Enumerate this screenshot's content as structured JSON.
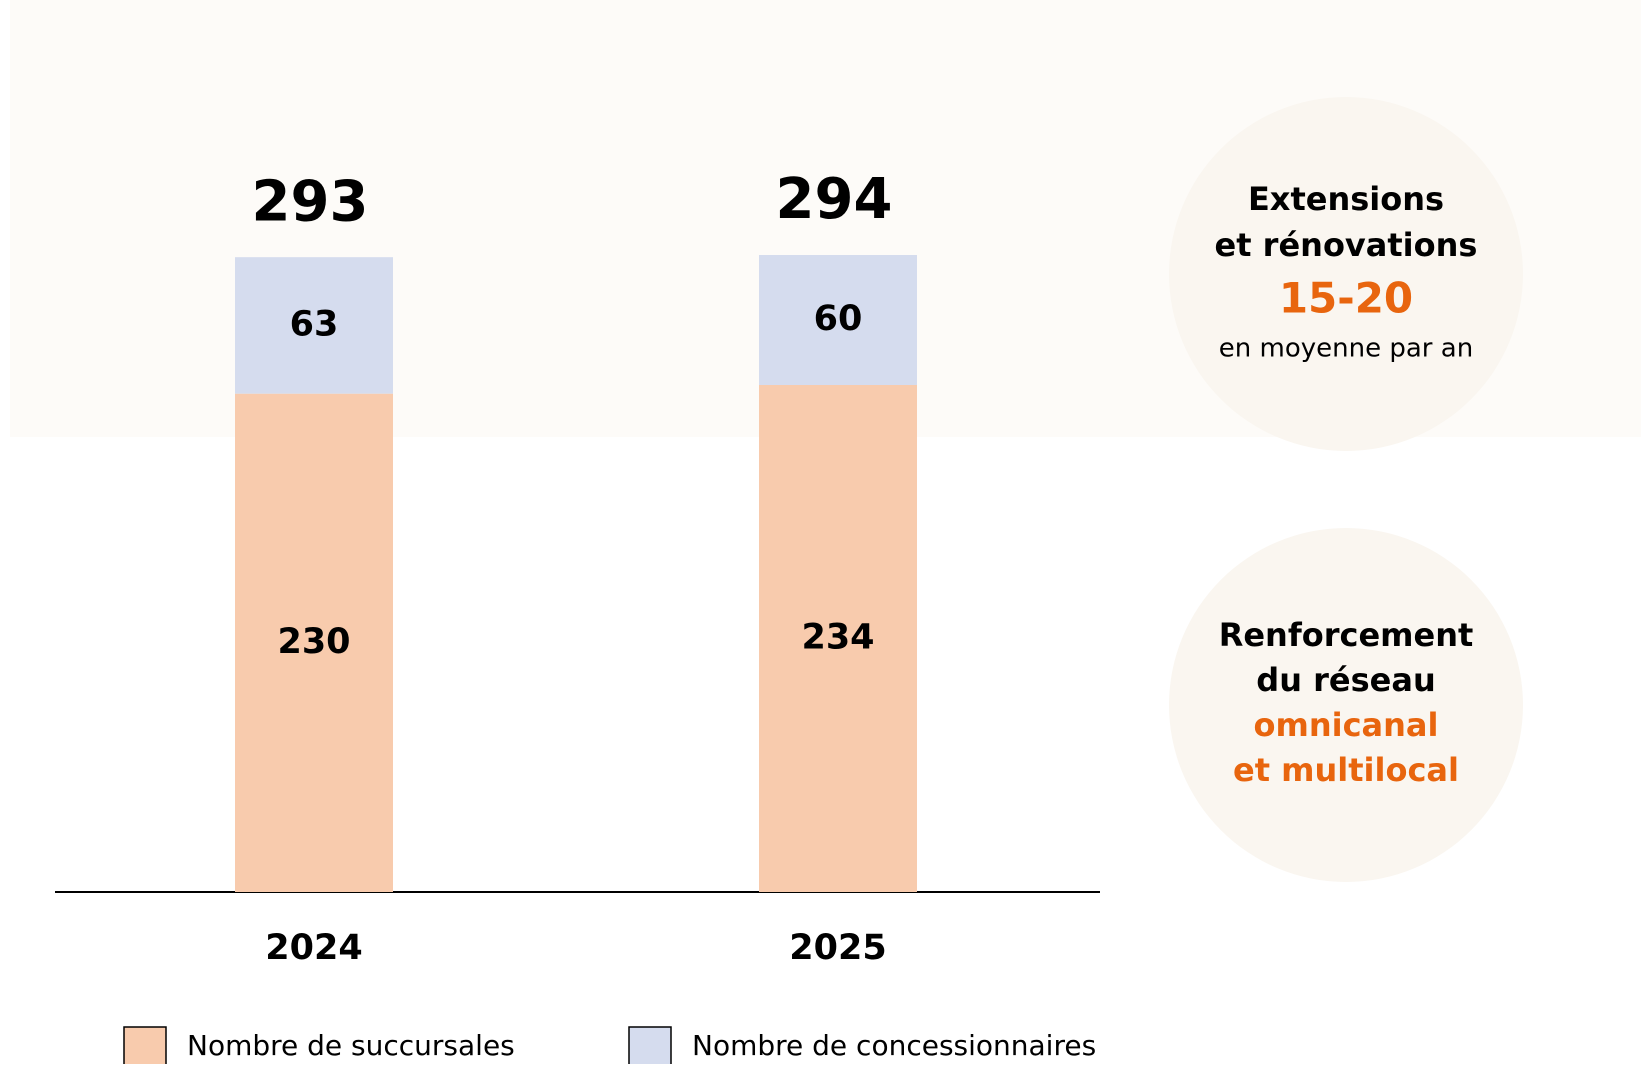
{
  "chart_data": {
    "type": "bar",
    "stacked": true,
    "categories": [
      "2024",
      "2025"
    ],
    "series": [
      {
        "name": "Nombre de succursales",
        "color": "#f8cbad",
        "values": [
          230,
          234
        ]
      },
      {
        "name": "Nombre de concessionnaires",
        "color": "#d5dcee",
        "values": [
          63,
          60
        ]
      }
    ],
    "totals": [
      293,
      294
    ]
  },
  "callouts": [
    {
      "lines": [
        "Extensions",
        "et rénovations"
      ],
      "highlight": [
        "15-20"
      ],
      "note": "en moyenne par an"
    },
    {
      "lines": [
        "Renforcement",
        "du réseau"
      ],
      "highlight": [
        "omnicanal",
        "et multilocal"
      ]
    }
  ]
}
